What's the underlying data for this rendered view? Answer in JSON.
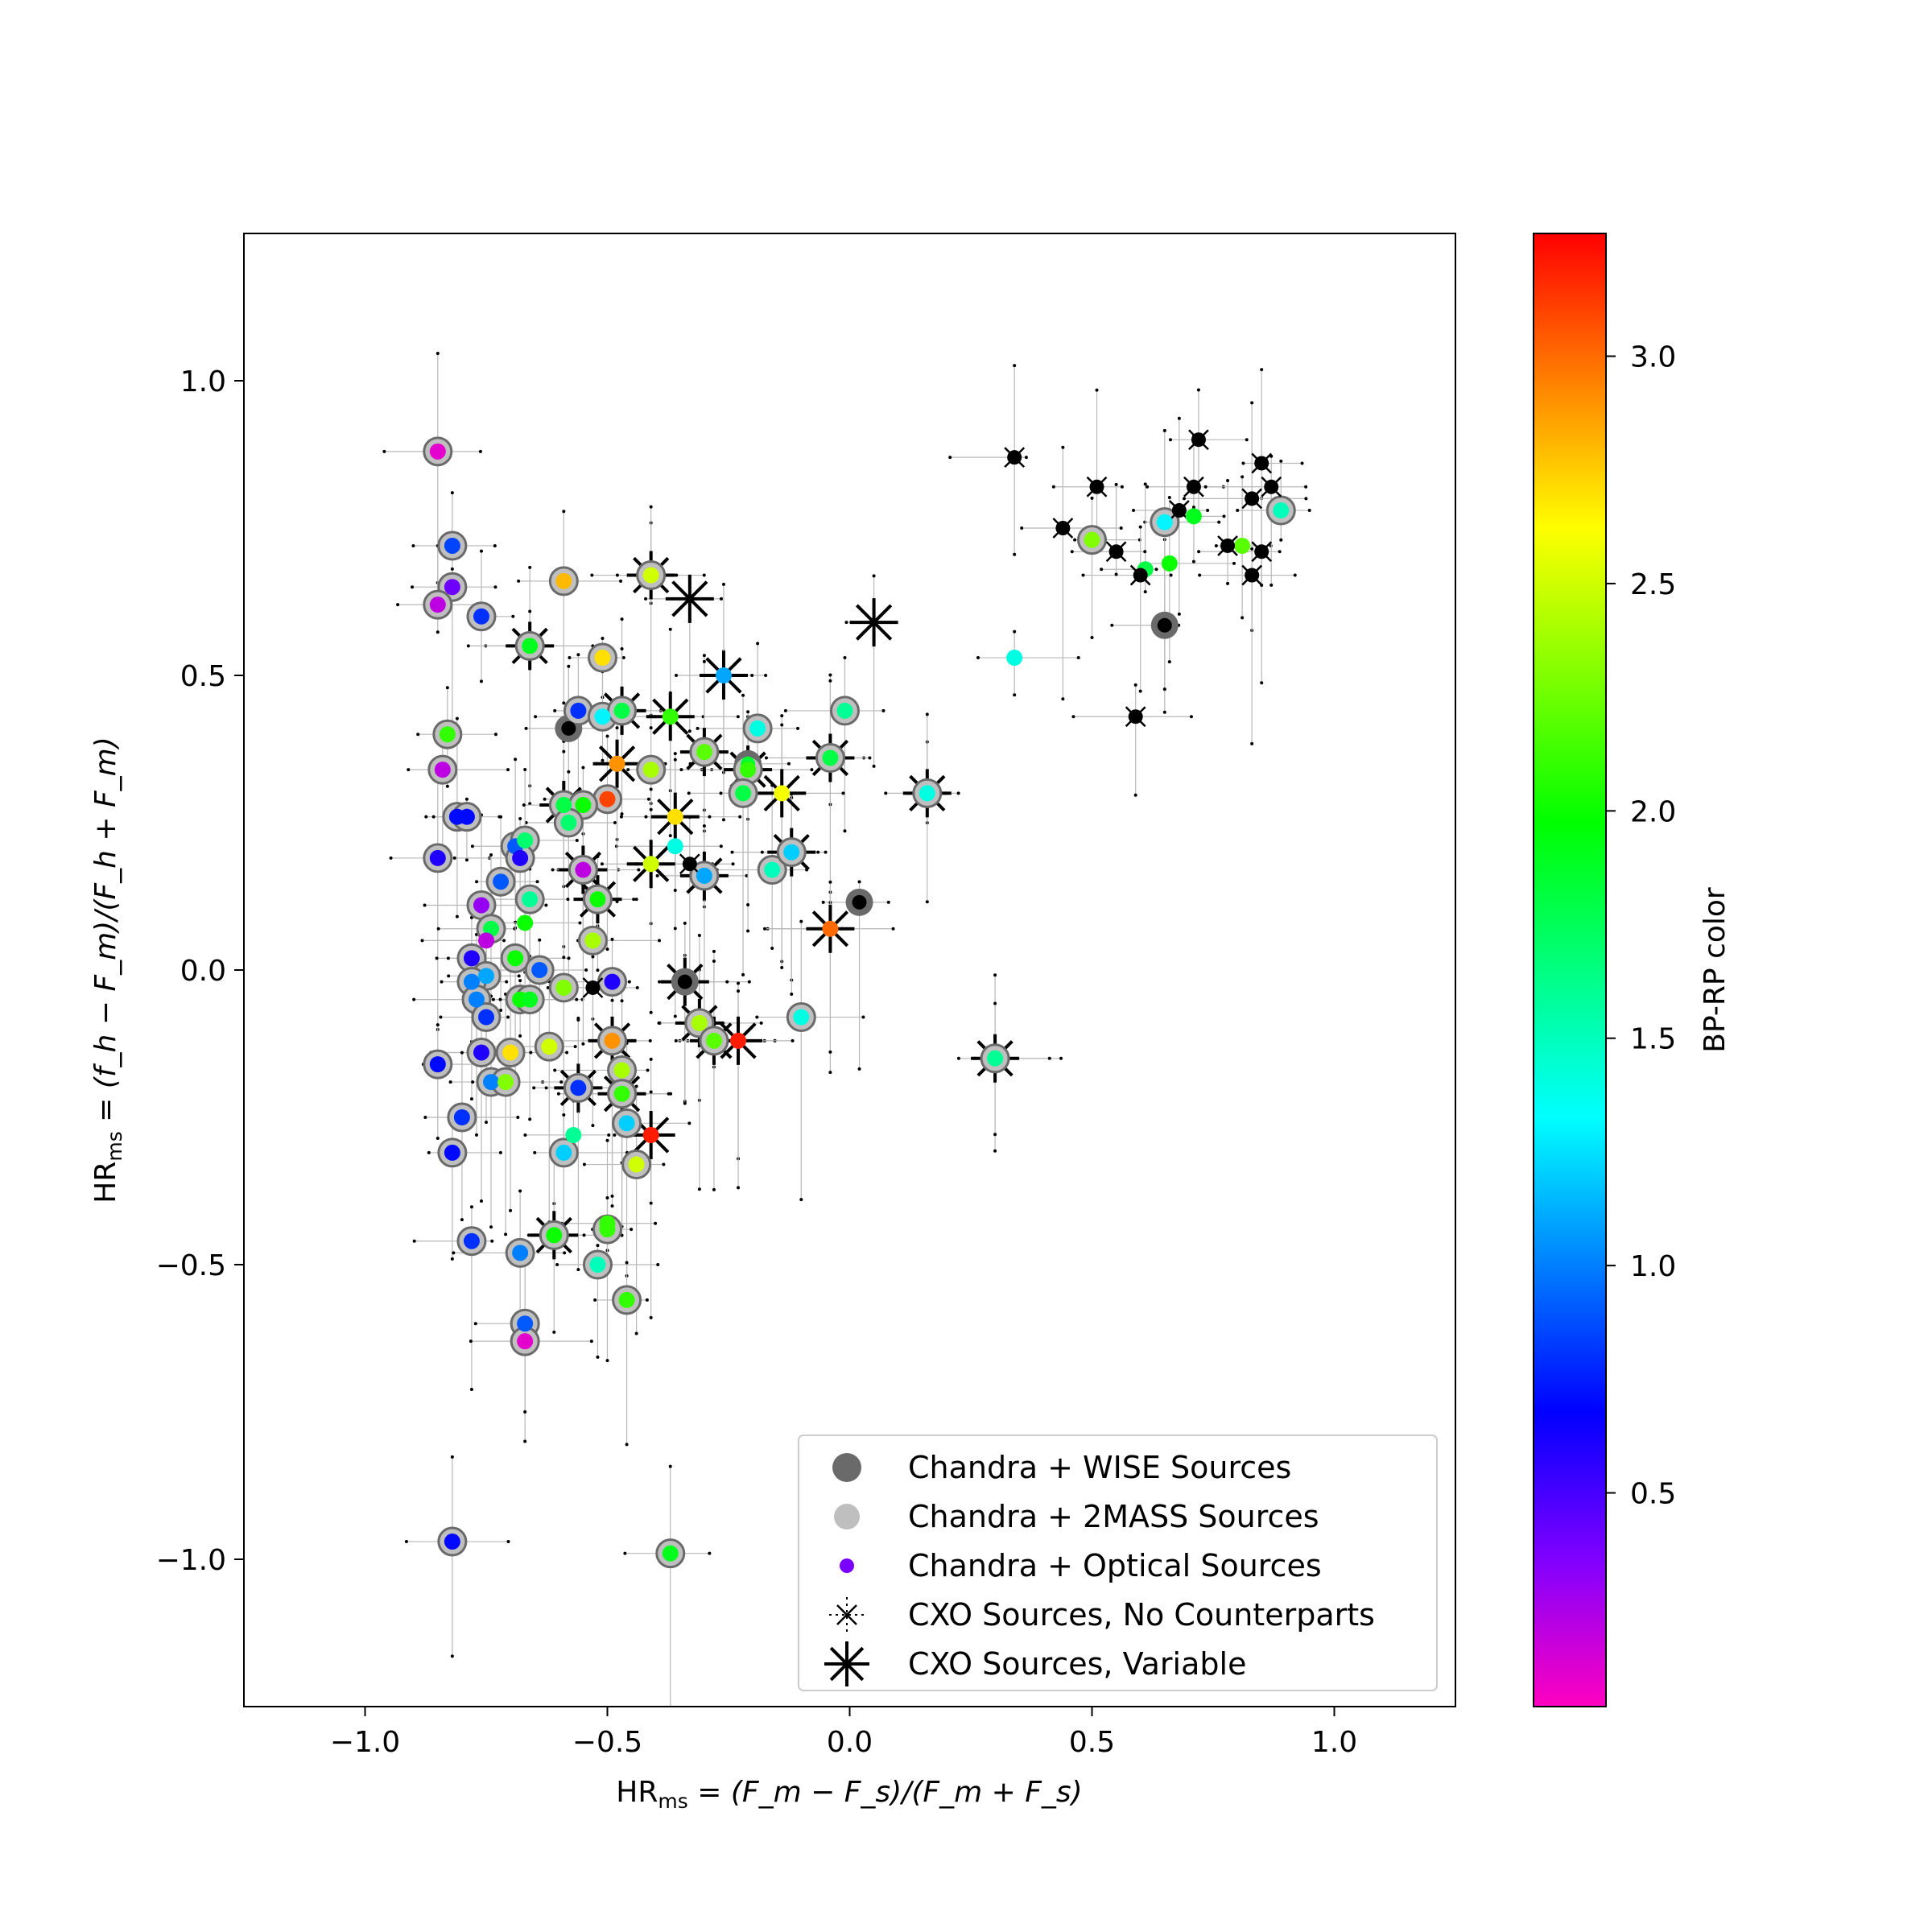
{
  "chart_data": {
    "type": "scatter",
    "xlabel_main": "HR",
    "xlabel_sub": "ms",
    "xlabel_rest": " = (F_m − F_s)/(F_m + F_s)",
    "ylabel_main": "HR",
    "ylabel_sub": "ms",
    "ylabel_rest": " = (f_h − F_m)/(F_h + F_m)",
    "xlim": [
      -1.25,
      1.25
    ],
    "ylim": [
      -1.25,
      1.25
    ],
    "xticks": [
      -1.0,
      -0.5,
      0.0,
      0.5,
      1.0
    ],
    "xtick_labels": [
      "−1.0",
      "−0.5",
      "0.0",
      "0.5",
      "1.0"
    ],
    "yticks": [
      -1.0,
      -0.5,
      0.0,
      0.5,
      1.0
    ],
    "ytick_labels": [
      "−1.0",
      "−0.5",
      "0.0",
      "0.5",
      "1.0"
    ],
    "colorbar": {
      "label": "BP-RP color",
      "range": [
        0.03,
        3.27
      ],
      "ticks": [
        0.5,
        1.0,
        1.5,
        2.0,
        2.5,
        3.0
      ],
      "tick_labels": [
        "0.5",
        "1.0",
        "1.5",
        "2.0",
        "2.5",
        "3.0"
      ],
      "colormap": "gist_rainbow_r",
      "stops": [
        "#ff00bf",
        "#8000ff",
        "#0000ff",
        "#0080ff",
        "#00ffff",
        "#00ff80",
        "#00ff00",
        "#80ff00",
        "#ffff00",
        "#ff8000",
        "#ff0000"
      ]
    },
    "legend": {
      "placement": "lower-right",
      "entries": [
        {
          "label": "Chandra + WISE Sources",
          "marker": "wise"
        },
        {
          "label": "Chandra + 2MASS Sources",
          "marker": "2mass"
        },
        {
          "label": "Chandra + Optical Sources",
          "marker": "optical"
        },
        {
          "label": "CXO Sources, No Counterparts",
          "marker": "nocp"
        },
        {
          "label": "CXO Sources, Variable",
          "marker": "variable"
        }
      ]
    },
    "series": [
      {
        "name": "Chandra + WISE Sources",
        "points": [
          [
            0.65,
            0.585,
            "black"
          ],
          [
            -0.58,
            0.41,
            "black"
          ],
          [
            0.02,
            0.115,
            "black"
          ],
          [
            -0.34,
            -0.02,
            "black"
          ],
          [
            -0.21,
            0.35,
            1.85
          ]
        ]
      },
      {
        "name": "Chandra + 2MASS Sources",
        "points": [
          [
            -0.85,
            0.88,
            0.1
          ],
          [
            -0.82,
            0.72,
            0.85
          ],
          [
            -0.82,
            0.65,
            0.4
          ],
          [
            -0.85,
            0.62,
            0.2
          ],
          [
            -0.76,
            0.6,
            0.8
          ],
          [
            -0.66,
            0.55,
            1.9
          ],
          [
            -0.59,
            0.66,
            2.8
          ],
          [
            -0.51,
            0.53,
            2.7
          ],
          [
            -0.41,
            0.67,
            2.5
          ],
          [
            -0.83,
            0.4,
            2.1
          ],
          [
            -0.84,
            0.34,
            0.2
          ],
          [
            -0.56,
            0.44,
            0.8
          ],
          [
            -0.51,
            0.43,
            1.3
          ],
          [
            -0.47,
            0.44,
            1.8
          ],
          [
            -0.19,
            0.41,
            1.4
          ],
          [
            -0.01,
            0.44,
            1.6
          ],
          [
            -0.3,
            0.37,
            2.2
          ],
          [
            -0.21,
            0.34,
            2.1
          ],
          [
            -0.04,
            0.36,
            1.8
          ],
          [
            -0.41,
            0.34,
            2.4
          ],
          [
            -0.22,
            0.3,
            1.8
          ],
          [
            0.16,
            0.3,
            1.4
          ],
          [
            -0.5,
            0.29,
            3.1
          ],
          [
            -0.59,
            0.28,
            1.8
          ],
          [
            -0.55,
            0.28,
            2.0
          ],
          [
            -0.58,
            0.25,
            1.7
          ],
          [
            -0.81,
            0.26,
            0.7
          ],
          [
            -0.79,
            0.26,
            0.7
          ],
          [
            -0.69,
            0.21,
            0.9
          ],
          [
            -0.67,
            0.22,
            1.7
          ],
          [
            -0.85,
            0.19,
            0.6
          ],
          [
            -0.68,
            0.19,
            0.6
          ],
          [
            -0.72,
            0.15,
            0.9
          ],
          [
            -0.55,
            0.17,
            0.2
          ],
          [
            -0.16,
            0.17,
            1.5
          ],
          [
            -0.12,
            0.2,
            1.2
          ],
          [
            -0.3,
            0.16,
            1.1
          ],
          [
            -0.52,
            0.12,
            2.0
          ],
          [
            -0.66,
            0.12,
            1.6
          ],
          [
            -0.76,
            0.11,
            0.3
          ],
          [
            -0.74,
            0.07,
            1.8
          ],
          [
            -0.53,
            0.05,
            2.4
          ],
          [
            -0.78,
            0.02,
            0.6
          ],
          [
            -0.69,
            0.02,
            2.0
          ],
          [
            -0.64,
            0.0,
            0.9
          ],
          [
            -0.75,
            -0.01,
            1.1
          ],
          [
            -0.78,
            -0.02,
            1.0
          ],
          [
            -0.49,
            -0.02,
            0.6
          ],
          [
            -0.59,
            -0.03,
            2.3
          ],
          [
            -0.77,
            -0.05,
            1.0
          ],
          [
            -0.68,
            -0.05,
            2.0
          ],
          [
            -0.66,
            -0.05,
            1.9
          ],
          [
            -0.75,
            -0.08,
            0.8
          ],
          [
            -0.1,
            -0.08,
            1.4
          ],
          [
            -0.31,
            -0.09,
            2.4
          ],
          [
            -0.28,
            -0.12,
            2.2
          ],
          [
            -0.49,
            -0.12,
            2.9
          ],
          [
            -0.62,
            -0.13,
            2.5
          ],
          [
            -0.7,
            -0.14,
            2.7
          ],
          [
            -0.76,
            -0.14,
            0.6
          ],
          [
            -0.85,
            -0.16,
            0.7
          ],
          [
            -0.47,
            -0.17,
            2.4
          ],
          [
            -0.74,
            -0.19,
            1.0
          ],
          [
            -0.71,
            -0.19,
            2.3
          ],
          [
            -0.56,
            -0.2,
            0.8
          ],
          [
            -0.47,
            -0.21,
            2.1
          ],
          [
            -0.8,
            -0.25,
            0.8
          ],
          [
            -0.46,
            -0.26,
            1.2
          ],
          [
            -0.44,
            -0.33,
            2.5
          ],
          [
            -0.59,
            -0.31,
            1.2
          ],
          [
            -0.82,
            -0.31,
            0.7
          ],
          [
            -0.78,
            -0.46,
            0.8
          ],
          [
            -0.68,
            -0.48,
            1.0
          ],
          [
            -0.61,
            -0.45,
            2.0
          ],
          [
            -0.5,
            -0.44,
            2.1
          ],
          [
            -0.52,
            -0.5,
            1.5
          ],
          [
            -0.46,
            -0.56,
            2.1
          ],
          [
            -0.67,
            -0.6,
            0.9
          ],
          [
            -0.67,
            -0.63,
            0.1
          ],
          [
            -0.82,
            -0.97,
            0.7
          ],
          [
            -0.37,
            -0.99,
            1.9
          ],
          [
            0.5,
            0.73,
            2.3
          ],
          [
            0.3,
            -0.15,
            1.6
          ],
          [
            0.89,
            0.78,
            1.5
          ],
          [
            0.65,
            0.76,
            1.3
          ]
        ]
      },
      {
        "name": "Chandra + Optical Sources",
        "points": [
          [
            -0.67,
            0.08,
            2.0
          ],
          [
            -0.75,
            0.05,
            0.2
          ],
          [
            -0.5,
            -0.43,
            2.1
          ],
          [
            -0.57,
            -0.28,
            1.6
          ],
          [
            -0.36,
            0.21,
            1.4
          ],
          [
            -0.41,
            -0.28,
            3.2
          ],
          [
            -0.23,
            -0.12,
            3.2
          ],
          [
            0.34,
            0.53,
            1.4
          ],
          [
            0.66,
            0.69,
            2.0
          ],
          [
            0.61,
            0.68,
            1.8
          ],
          [
            0.81,
            0.72,
            2.2
          ],
          [
            0.71,
            0.77,
            1.9
          ],
          [
            -0.14,
            0.3,
            2.6
          ],
          [
            -0.37,
            0.43,
            2.1
          ],
          [
            -0.04,
            0.07,
            3.0
          ],
          [
            -0.26,
            0.5,
            1.1
          ],
          [
            -0.36,
            0.26,
            2.7
          ],
          [
            -0.48,
            0.35,
            2.9
          ],
          [
            -0.41,
            0.18,
            2.5
          ]
        ]
      },
      {
        "name": "CXO Sources, No Counterparts",
        "points": [
          [
            0.34,
            0.87
          ],
          [
            0.51,
            0.82
          ],
          [
            0.44,
            0.75
          ],
          [
            0.71,
            0.82
          ],
          [
            0.68,
            0.78
          ],
          [
            0.87,
            0.82
          ],
          [
            0.85,
            0.71
          ],
          [
            0.78,
            0.72
          ],
          [
            0.6,
            0.67
          ],
          [
            0.59,
            0.43
          ],
          [
            0.72,
            0.9
          ],
          [
            0.85,
            0.86
          ],
          [
            0.83,
            0.8
          ],
          [
            0.55,
            0.71
          ],
          [
            0.83,
            0.67
          ],
          [
            -0.53,
            -0.03
          ],
          [
            -0.33,
            0.18
          ]
        ]
      },
      {
        "name": "CXO Sources, Variable",
        "points": [
          [
            -0.33,
            0.63
          ],
          [
            0.05,
            0.59
          ],
          [
            -0.26,
            0.5
          ],
          [
            -0.37,
            0.43
          ],
          [
            -0.14,
            0.3
          ],
          [
            -0.66,
            0.55
          ],
          [
            -0.41,
            0.67
          ],
          [
            -0.47,
            0.44
          ],
          [
            -0.3,
            0.37
          ],
          [
            -0.04,
            0.36
          ],
          [
            0.16,
            0.3
          ],
          [
            -0.59,
            0.28
          ],
          [
            -0.55,
            0.17
          ],
          [
            -0.12,
            0.2
          ],
          [
            -0.3,
            0.16
          ],
          [
            -0.52,
            0.12
          ],
          [
            -0.04,
            0.07
          ],
          [
            -0.41,
            0.18
          ],
          [
            -0.34,
            -0.02
          ],
          [
            -0.31,
            -0.09
          ],
          [
            -0.28,
            -0.12
          ],
          [
            -0.23,
            -0.12
          ],
          [
            -0.49,
            -0.12
          ],
          [
            -0.56,
            -0.2
          ],
          [
            -0.47,
            -0.21
          ],
          [
            -0.41,
            -0.28
          ],
          [
            -0.61,
            -0.45
          ],
          [
            0.3,
            -0.15
          ],
          [
            -0.21,
            0.34
          ],
          [
            -0.36,
            0.26
          ],
          [
            -0.48,
            0.35
          ]
        ]
      }
    ]
  }
}
